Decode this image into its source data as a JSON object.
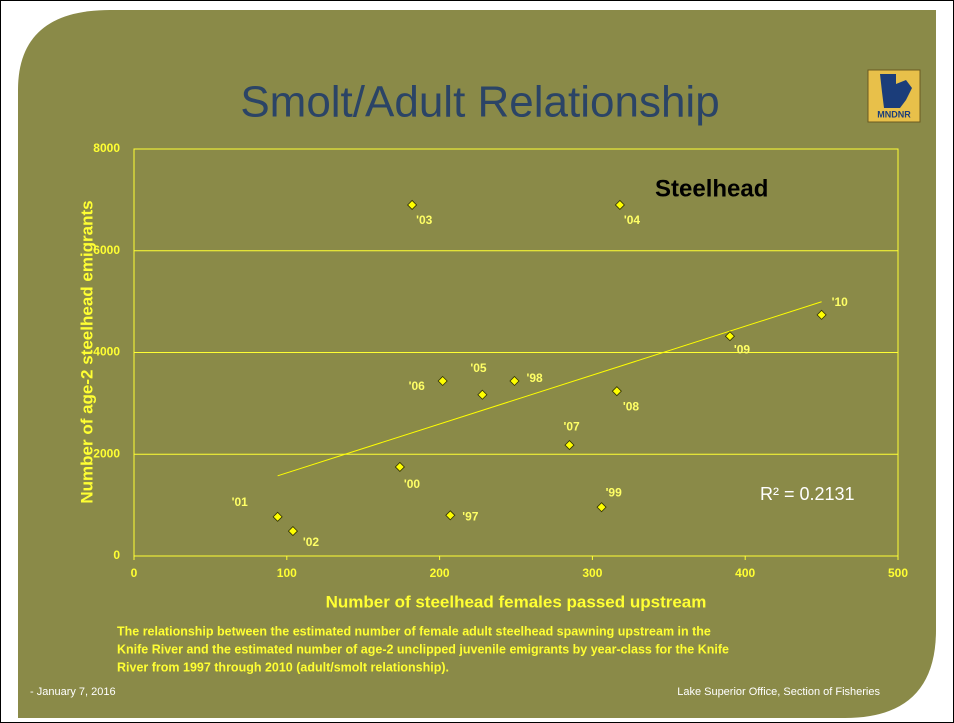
{
  "chart_data": {
    "type": "scatter",
    "title": "Smolt/Adult Relationship",
    "logo": "MNDNR",
    "annotation": "Steelhead",
    "r_squared": "R² = 0.2131",
    "x_label": "Number of steelhead females passed upstream",
    "y_label": "Number of age-2 steelhead emigrants",
    "caption": [
      "The relationship between the estimated number of female adult steelhead spawning upstream in the",
      "Knife River and the estimated number of age-2 unclipped juvenile emigrants by year-class for the Knife",
      "River from 1997 through 2010 (adult/smolt relationship)."
    ],
    "footer_left": "- January 7, 2016",
    "footer_right": "Lake Superior Office, Section of Fisheries",
    "xlim": [
      0,
      500
    ],
    "xticks": [
      0,
      100,
      200,
      300,
      400,
      500
    ],
    "ylim": [
      0,
      8000
    ],
    "yticks": [
      0,
      2000,
      4000,
      6000,
      8000
    ],
    "grid": true,
    "trendline": true,
    "series": [
      {
        "color": "#ffff00",
        "labels": [
          "'97",
          "'98",
          "'99",
          "'00",
          "'01",
          "'02",
          "'03",
          "'04",
          "'05",
          "'06",
          "'07",
          "'08",
          "'09",
          "'10"
        ],
        "x": [
          207,
          249,
          306,
          174,
          94,
          104,
          182,
          318,
          228,
          202,
          285,
          316,
          390,
          450
        ],
        "values": [
          800,
          3440,
          960,
          1750,
          770,
          490,
          6900,
          6900,
          3170,
          3440,
          2180,
          3240,
          4320,
          4740
        ]
      }
    ]
  }
}
